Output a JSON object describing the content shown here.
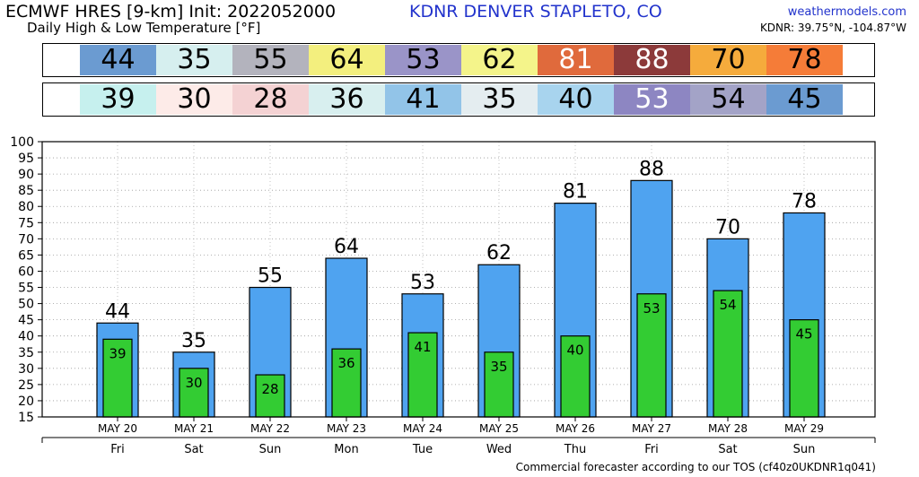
{
  "header": {
    "title": "ECMWF HRES [9-km] Init: 2022052000",
    "subtitle": "Daily High & Low Temperature [°F]",
    "station": "KDNR DENVER STAPLETO, CO",
    "brand": "weathermodels.com",
    "coords": "KDNR: 39.75°N, -104.87°W"
  },
  "footer": "Commercial forecaster according to our TOS (cf40z0UKDNR1q041)",
  "colors": {
    "high_bar": "#4fa3f0",
    "low_bar": "#33cc33",
    "high_strip": [
      "#6b9bd1",
      "#d6efef",
      "#b3b3bd",
      "#f3ef7e",
      "#9a94c8",
      "#f4f48a",
      "#e06a3c",
      "#8c3a3a",
      "#f5ab3c",
      "#f57c38"
    ],
    "low_strip": [
      "#c6f0ee",
      "#fdebe8",
      "#f4d2d3",
      "#d8efef",
      "#92c4e8",
      "#e4edf0",
      "#a8d4ee",
      "#8d86c2",
      "#a3a3c7",
      "#6b9bd1"
    ]
  },
  "chart_data": {
    "type": "bar",
    "categories": [
      "MAY 20",
      "MAY 21",
      "MAY 22",
      "MAY 23",
      "MAY 24",
      "MAY 25",
      "MAY 26",
      "MAY 27",
      "MAY 28",
      "MAY 29"
    ],
    "weekdays": [
      "Fri",
      "Sat",
      "Sun",
      "Mon",
      "Tue",
      "Wed",
      "Thu",
      "Fri",
      "Sat",
      "Sun"
    ],
    "series": [
      {
        "values": [
          44,
          35,
          55,
          64,
          53,
          62,
          81,
          88,
          70,
          78
        ]
      },
      {
        "values": [
          39,
          30,
          28,
          36,
          41,
          35,
          40,
          53,
          54,
          45
        ]
      }
    ],
    "ylim": [
      15,
      100
    ],
    "yticks": [
      15,
      20,
      25,
      30,
      35,
      40,
      45,
      50,
      55,
      60,
      65,
      70,
      75,
      80,
      85,
      90,
      95,
      100
    ],
    "grid": true,
    "xlabel": "",
    "ylabel": ""
  }
}
